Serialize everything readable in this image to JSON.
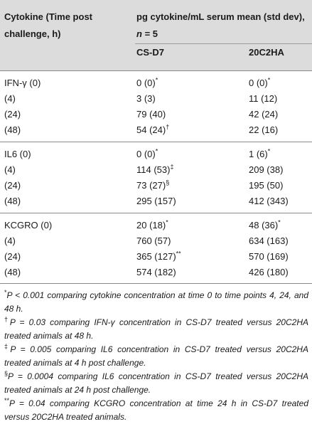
{
  "header": {
    "col1": "Cytokine (Time post challenge, h)",
    "col23_prefix": "pg cytokine/mL serum mean (std dev), ",
    "col23_n": "n",
    "col23_suffix": " = 5",
    "col2": "CS-D7",
    "col3": "20C2HA"
  },
  "rows": [
    {
      "label": "IFN-γ (0)",
      "a": "0 (0)",
      "a_sup": "*",
      "b": "0 (0)",
      "b_sup": "*"
    },
    {
      "label": "(4)",
      "a": "3 (3)",
      "a_sup": "",
      "b": "11 (12)",
      "b_sup": ""
    },
    {
      "label": "(24)",
      "a": "79 (40)",
      "a_sup": "",
      "b": "42 (24)",
      "b_sup": ""
    },
    {
      "label": "(48)",
      "a": "54 (24)",
      "a_sup": "†",
      "b": "22 (16)",
      "b_sup": ""
    },
    {
      "label": "IL6 (0)",
      "a": "0 (0)",
      "a_sup": "*",
      "b": "1 (6)",
      "b_sup": "*"
    },
    {
      "label": "(4)",
      "a": "114 (53)",
      "a_sup": "‡",
      "b": "209 (38)",
      "b_sup": ""
    },
    {
      "label": "(24)",
      "a": "73 (27)",
      "a_sup": "§",
      "b": "195 (50)",
      "b_sup": ""
    },
    {
      "label": "(48)",
      "a": "295 (157)",
      "a_sup": "",
      "b": "412 (343)",
      "b_sup": ""
    },
    {
      "label": "KCGRO (0)",
      "a": "20 (18)",
      "a_sup": "*",
      "b": "48 (36)",
      "b_sup": "*"
    },
    {
      "label": "(4)",
      "a": "760 (57)",
      "a_sup": "",
      "b": "634 (163)",
      "b_sup": ""
    },
    {
      "label": "(24)",
      "a": "365 (127)",
      "a_sup": "**",
      "b": "570 (169)",
      "b_sup": ""
    },
    {
      "label": "(48)",
      "a": "574 (182)",
      "a_sup": "",
      "b": "426 (180)",
      "b_sup": ""
    }
  ],
  "notes": [
    {
      "mark": "*",
      "text": "P < 0.001 comparing cytokine concentration at time 0 to time points 4, 24, and 48 h."
    },
    {
      "mark": "†",
      "text": "P = 0.03 comparing IFN-γ concentration in CS-D7 treated versus 20C2HA treated animals at 48 h."
    },
    {
      "mark": "‡",
      "text": "P = 0.005 comparing IL6 concentration in CS-D7 treated versus 20C2HA treated animals at 4 h post challenge."
    },
    {
      "mark": "§",
      "text": "P = 0.0004 comparing IL6 concentration in CS-D7 treated versus 20C2HA treated animals at 24 h post challenge."
    },
    {
      "mark": "**",
      "text": "P = 0.04 comparing KCGRO concentration at time 24 h in CS-D7 treated versus 20C2HA treated animals."
    }
  ]
}
